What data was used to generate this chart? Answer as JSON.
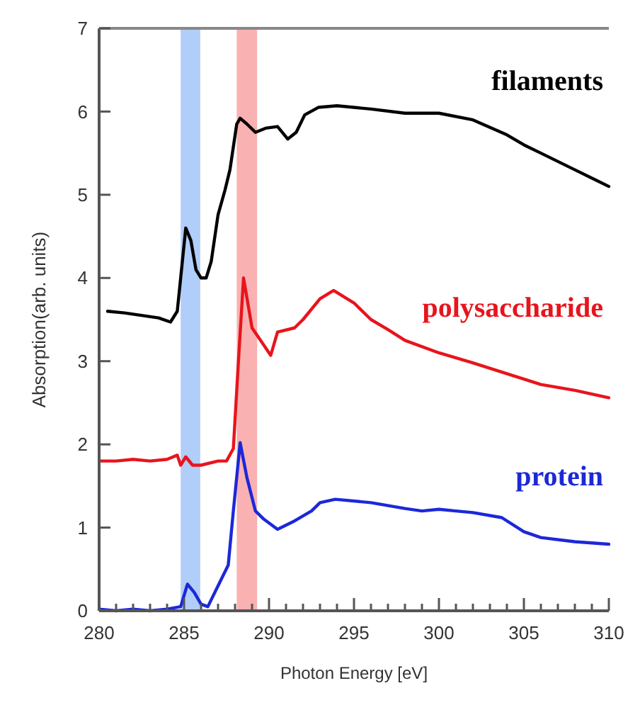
{
  "chart_data": {
    "type": "line",
    "xlabel": "Photon Energy [eV]",
    "ylabel": "Absorption(arb. units)",
    "xlim": [
      280,
      310
    ],
    "ylim": [
      0,
      7
    ],
    "xticks": [
      280,
      {
        "value": 281,
        "label": null
      },
      {
        "value": 282,
        "label": null
      },
      {
        "value": 283,
        "label": null
      },
      {
        "value": 284,
        "label": null
      },
      285,
      {
        "value": 286,
        "label": null
      },
      {
        "value": 287,
        "label": null
      },
      {
        "value": 288,
        "label": null
      },
      {
        "value": 289,
        "label": null
      },
      290,
      {
        "value": 291,
        "label": null
      },
      {
        "value": 292,
        "label": null
      },
      {
        "value": 293,
        "label": null
      },
      {
        "value": 294,
        "label": null
      },
      295,
      {
        "value": 296,
        "label": null
      },
      {
        "value": 297,
        "label": null
      },
      {
        "value": 298,
        "label": null
      },
      {
        "value": 299,
        "label": null
      },
      300,
      {
        "value": 301,
        "label": null
      },
      {
        "value": 302,
        "label": null
      },
      {
        "value": 303,
        "label": null
      },
      {
        "value": 304,
        "label": null
      },
      305,
      {
        "value": 306,
        "label": null
      },
      {
        "value": 307,
        "label": null
      },
      {
        "value": 308,
        "label": null
      },
      {
        "value": 309,
        "label": null
      },
      310
    ],
    "yticks": [
      0,
      1,
      2,
      3,
      4,
      5,
      6,
      7
    ],
    "grid": false,
    "line_style": "solid",
    "marker": "none",
    "bands": [
      {
        "axis": "x",
        "from": 284.8,
        "to": 285.95,
        "color": "#a8c8f8"
      },
      {
        "axis": "x",
        "from": 288.1,
        "to": 289.3,
        "color": "#f8a8a8"
      }
    ],
    "series": [
      {
        "name": "filaments",
        "color": "#000000",
        "x": [
          280.5,
          281.5,
          282.5,
          283.5,
          284.2,
          284.6,
          284.9,
          285.1,
          285.4,
          285.7,
          286.0,
          286.3,
          286.6,
          287.0,
          287.4,
          287.7,
          288.1,
          288.3,
          288.7,
          289.2,
          289.8,
          290.5,
          291.1,
          291.6,
          292.1,
          292.9,
          294,
          296,
          298,
          300,
          302,
          304,
          305,
          306,
          308,
          310
        ],
        "values": [
          3.6,
          3.58,
          3.55,
          3.52,
          3.47,
          3.6,
          4.2,
          4.6,
          4.45,
          4.1,
          4.0,
          4.0,
          4.2,
          4.76,
          5.05,
          5.3,
          5.85,
          5.92,
          5.85,
          5.75,
          5.8,
          5.82,
          5.67,
          5.75,
          5.96,
          6.05,
          6.07,
          6.03,
          5.98,
          5.98,
          5.9,
          5.72,
          5.6,
          5.5,
          5.3,
          5.1
        ]
      },
      {
        "name": "polysaccharide",
        "color": "#e8141c",
        "x": [
          280,
          281,
          282,
          283,
          284,
          284.6,
          284.8,
          285.1,
          285.5,
          286,
          287,
          287.5,
          287.9,
          288.2,
          288.5,
          289,
          289.5,
          290.1,
          290.5,
          291.5,
          292,
          293,
          293.8,
          295,
          296,
          297,
          298,
          300,
          302,
          304,
          306,
          308,
          310
        ],
        "values": [
          1.8,
          1.8,
          1.82,
          1.8,
          1.82,
          1.87,
          1.75,
          1.85,
          1.75,
          1.75,
          1.8,
          1.8,
          1.95,
          3.0,
          4.0,
          3.4,
          3.25,
          3.07,
          3.35,
          3.4,
          3.5,
          3.75,
          3.85,
          3.7,
          3.5,
          3.38,
          3.25,
          3.1,
          2.98,
          2.85,
          2.72,
          2.65,
          2.56
        ]
      },
      {
        "name": "protein",
        "color": "#1c28d8",
        "x": [
          280,
          281,
          282,
          283,
          284,
          284.8,
          285.2,
          285.6,
          286.0,
          286.4,
          287,
          287.6,
          287.9,
          288.3,
          288.7,
          289.2,
          289.7,
          290.5,
          291.5,
          292.5,
          293,
          293.9,
          296,
          298,
          299,
          300,
          301,
          302,
          303.7,
          305,
          306,
          308,
          310
        ],
        "values": [
          0.02,
          0.0,
          0.02,
          0.0,
          0.02,
          0.05,
          0.32,
          0.22,
          0.08,
          0.05,
          0.3,
          0.55,
          1.2,
          2.02,
          1.6,
          1.2,
          1.1,
          0.98,
          1.08,
          1.2,
          1.3,
          1.34,
          1.3,
          1.23,
          1.2,
          1.22,
          1.2,
          1.18,
          1.12,
          0.95,
          0.88,
          0.83,
          0.8
        ]
      }
    ]
  }
}
